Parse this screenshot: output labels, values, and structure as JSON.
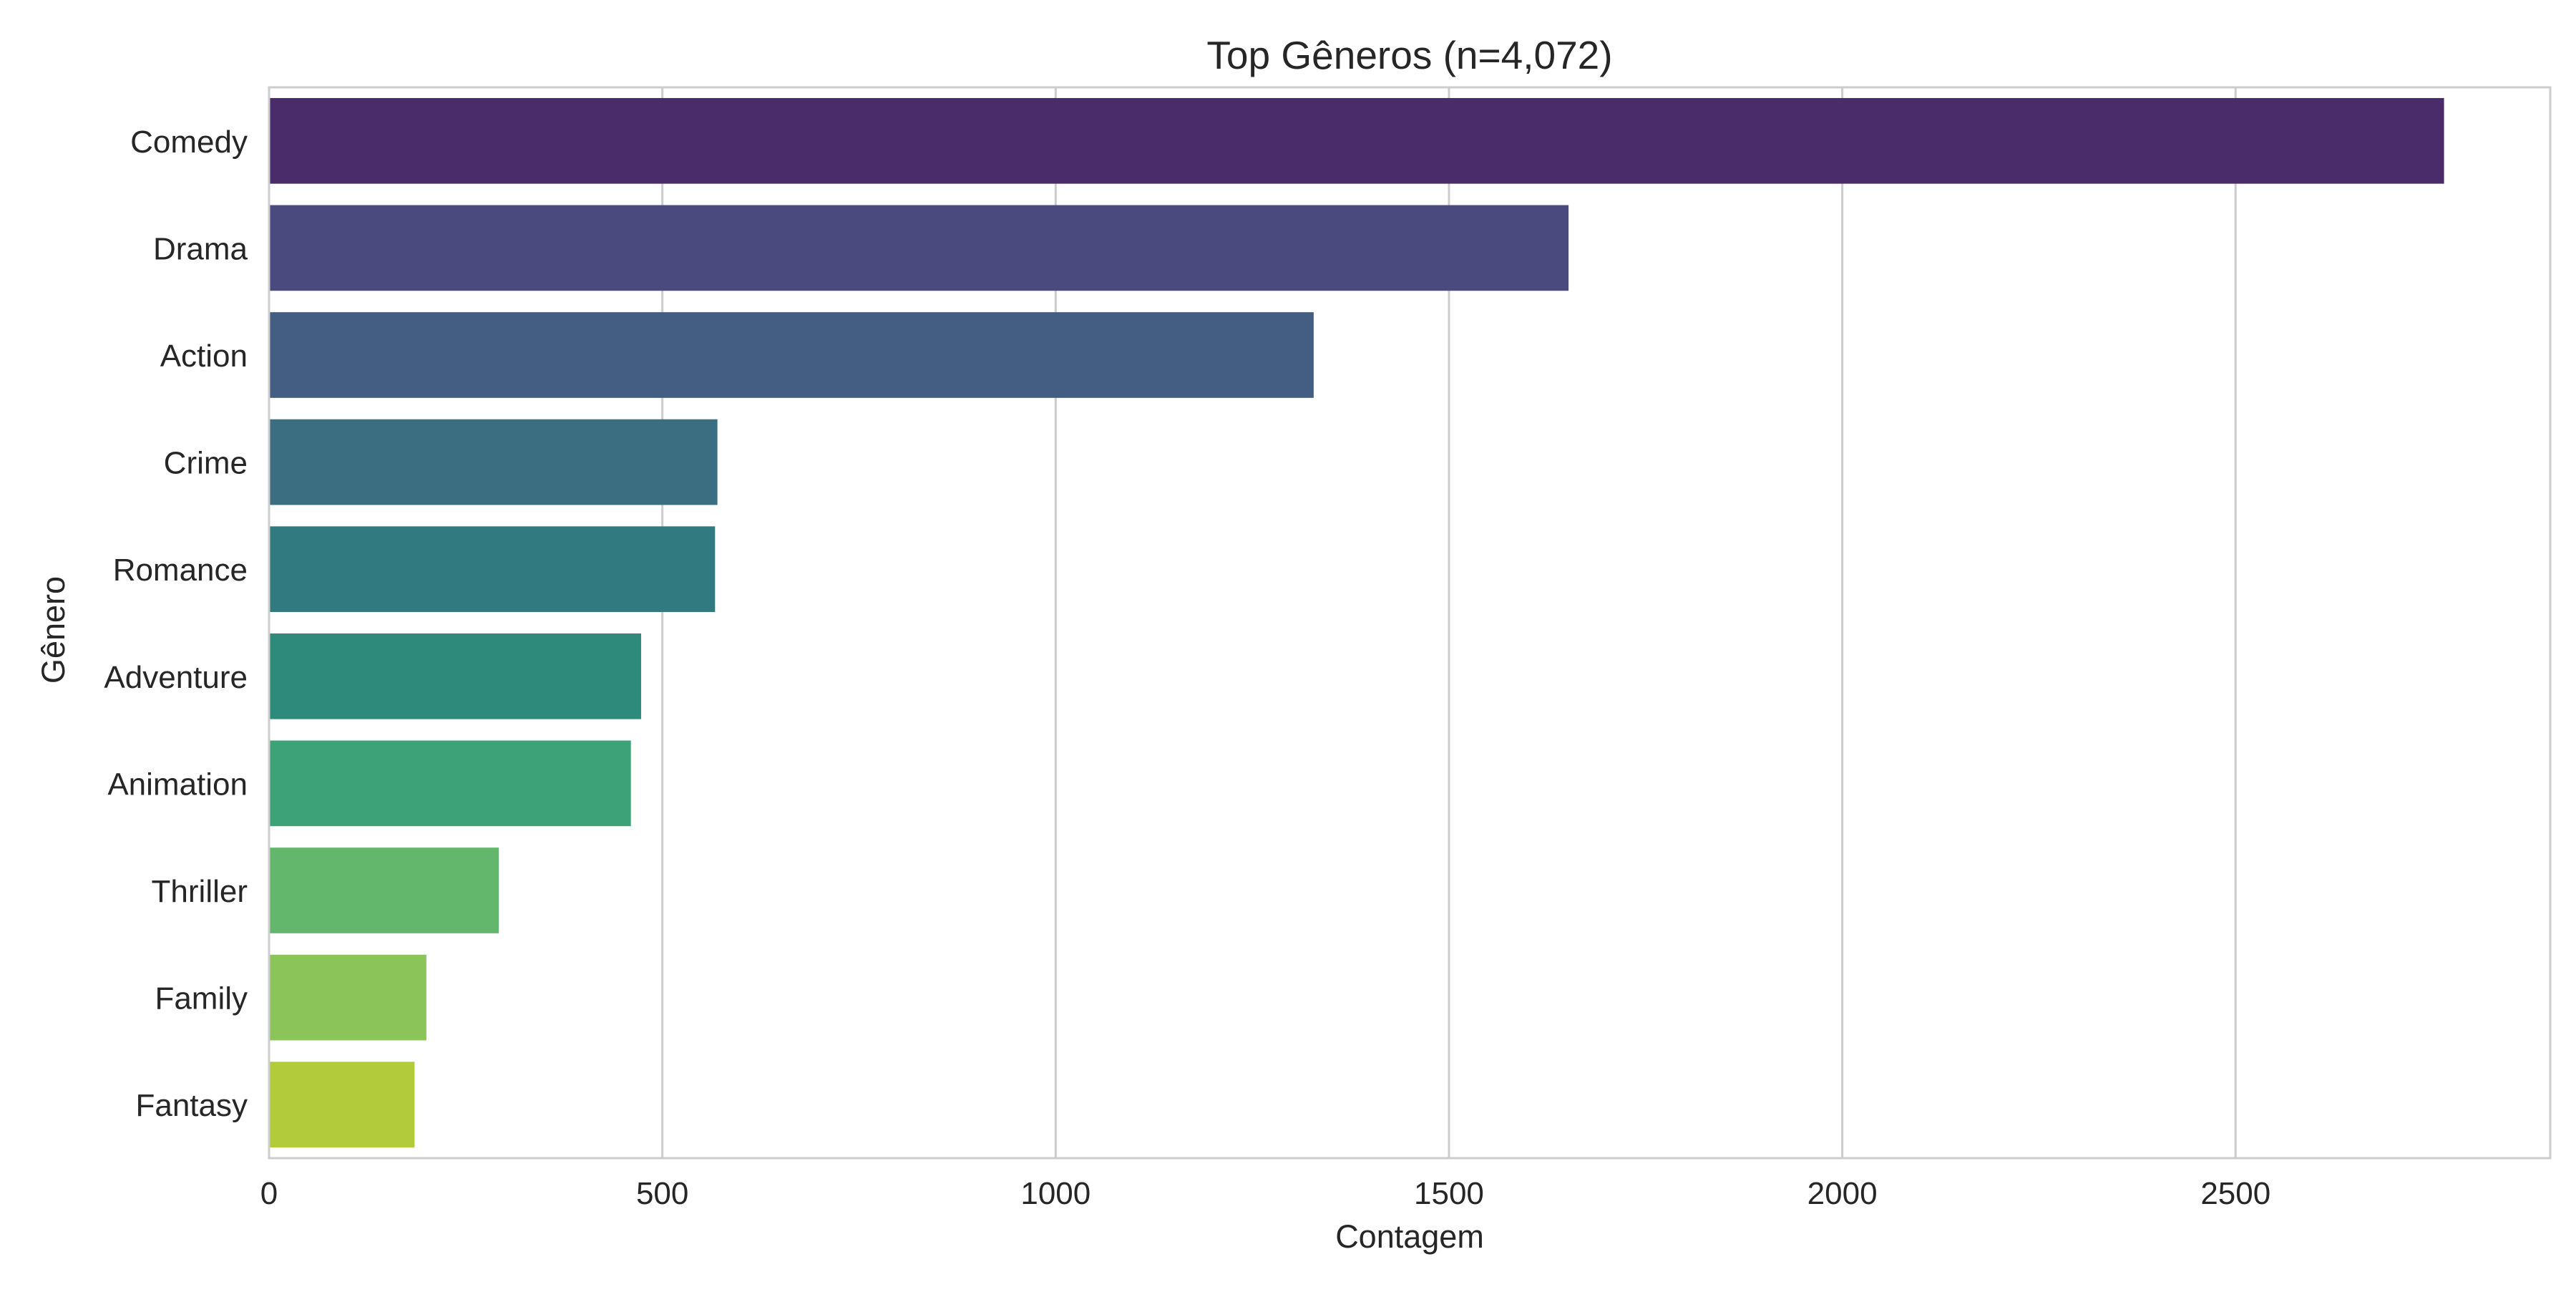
{
  "chart_data": {
    "type": "bar",
    "orientation": "horizontal",
    "title": "Top Gêneros (n=4,072)",
    "xlabel": "Contagem",
    "ylabel": "Gênero",
    "categories": [
      "Comedy",
      "Drama",
      "Action",
      "Crime",
      "Romance",
      "Adventure",
      "Animation",
      "Thriller",
      "Family",
      "Fantasy"
    ],
    "values": [
      2765,
      1652,
      1328,
      570,
      567,
      473,
      460,
      292,
      200,
      185
    ],
    "colors": [
      "#4a2c6a",
      "#4a4a7e",
      "#435d83",
      "#3a6e80",
      "#317b80",
      "#2e8b7c",
      "#3da278",
      "#62b76d",
      "#8bc55a",
      "#b1cb3b"
    ],
    "xlim": [
      0,
      2900
    ],
    "xticks": [
      0,
      500,
      1000,
      1500,
      2000,
      2500
    ],
    "grid": "x-major",
    "legend": "none"
  }
}
